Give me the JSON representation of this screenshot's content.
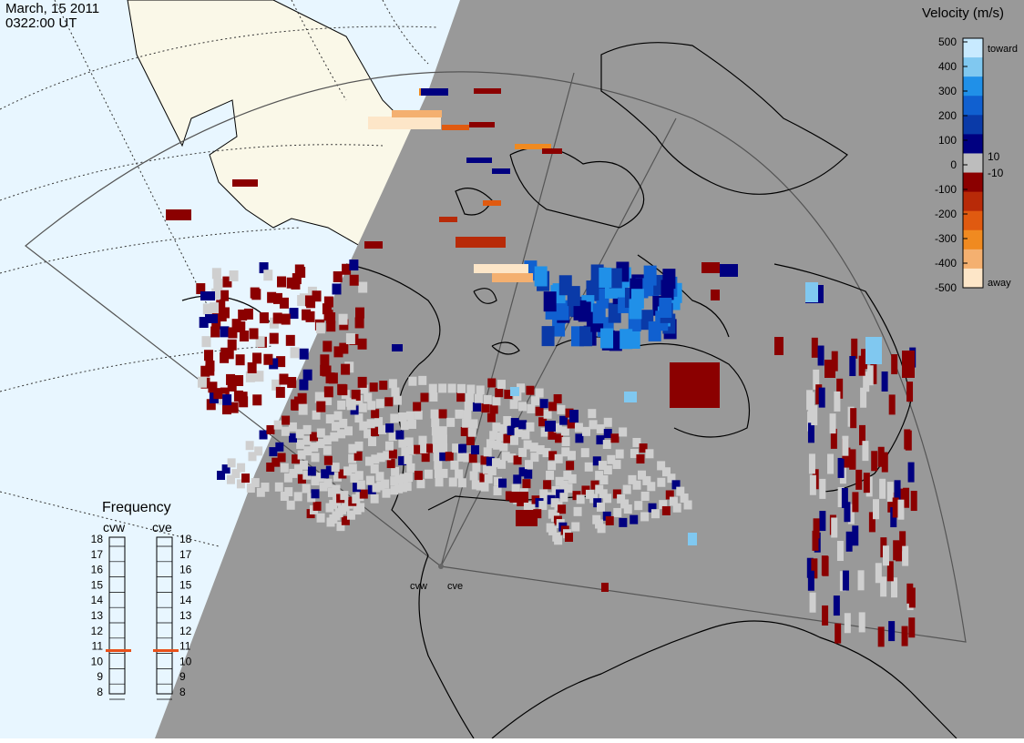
{
  "header": {
    "date": "March, 15 2011",
    "time": "0322:00 UT"
  },
  "colorbar": {
    "title": "Velocity (m/s)",
    "ticks": [
      "500",
      "400",
      "300",
      "200",
      "100",
      "0",
      "-100",
      "-200",
      "-300",
      "-400",
      "-500"
    ],
    "inner_ticks": [
      "10",
      "-10"
    ],
    "toward_label": "toward",
    "away_label": "away",
    "colors": [
      "#fde6c8",
      "#f4b070",
      "#f08a20",
      "#e05a10",
      "#b82a08",
      "#8b0000",
      "#bdbdbd",
      "#000080",
      "#0a3aa8",
      "#1060d0",
      "#2090e8",
      "#80c8f0",
      "#c8eaff"
    ]
  },
  "frequency": {
    "title": "Frequency",
    "radars": [
      "cvw",
      "cve"
    ],
    "levels": [
      "18",
      "17",
      "16",
      "15",
      "14",
      "13",
      "12",
      "11",
      "10",
      "9",
      "8"
    ],
    "current": 11,
    "indicator_color": "#e8501a"
  },
  "radar_sites": [
    "cvw",
    "cve"
  ],
  "map_colors": {
    "ocean_day": "#e8f6ff",
    "land_day": "#faf8e8",
    "night": "#999999",
    "ground_scatter": "#cfcfcf"
  }
}
